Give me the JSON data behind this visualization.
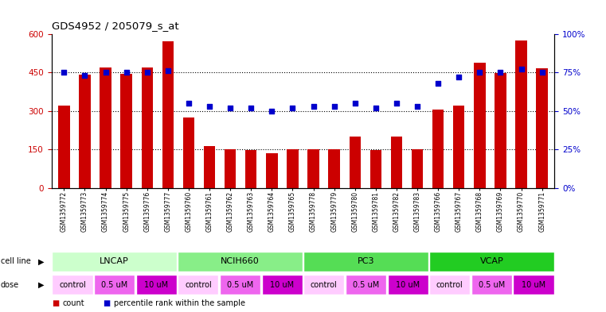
{
  "title": "GDS4952 / 205079_s_at",
  "samples": [
    "GSM1359772",
    "GSM1359773",
    "GSM1359774",
    "GSM1359775",
    "GSM1359776",
    "GSM1359777",
    "GSM1359760",
    "GSM1359761",
    "GSM1359762",
    "GSM1359763",
    "GSM1359764",
    "GSM1359765",
    "GSM1359778",
    "GSM1359779",
    "GSM1359780",
    "GSM1359781",
    "GSM1359782",
    "GSM1359783",
    "GSM1359766",
    "GSM1359767",
    "GSM1359768",
    "GSM1359769",
    "GSM1359770",
    "GSM1359771"
  ],
  "bar_values": [
    320,
    440,
    470,
    445,
    470,
    570,
    275,
    163,
    150,
    147,
    135,
    150,
    152,
    152,
    200,
    147,
    200,
    152,
    305,
    320,
    487,
    448,
    575,
    465
  ],
  "dot_values": [
    75,
    73,
    75,
    75,
    75,
    76,
    55,
    53,
    52,
    52,
    50,
    52,
    53,
    53,
    55,
    52,
    55,
    53,
    68,
    72,
    75,
    75,
    77,
    75
  ],
  "bar_color": "#cc0000",
  "dot_color": "#0000cc",
  "ylim_left": [
    0,
    600
  ],
  "ylim_right": [
    0,
    100
  ],
  "yticks_left": [
    0,
    150,
    300,
    450,
    600
  ],
  "ytick_labels_left": [
    "0",
    "150",
    "300",
    "450",
    "600"
  ],
  "yticks_right": [
    0,
    25,
    50,
    75,
    100
  ],
  "ytick_labels_right": [
    "0%",
    "25%",
    "50%",
    "75%",
    "100%"
  ],
  "hgrid_values": [
    150,
    300,
    450
  ],
  "cell_lines": [
    {
      "label": "LNCAP",
      "start": 0,
      "end": 6,
      "color": "#ccffcc"
    },
    {
      "label": "NCIH660",
      "start": 6,
      "end": 12,
      "color": "#88ee88"
    },
    {
      "label": "PC3",
      "start": 12,
      "end": 18,
      "color": "#55dd55"
    },
    {
      "label": "VCAP",
      "start": 18,
      "end": 24,
      "color": "#22cc22"
    }
  ],
  "dose_groups": [
    {
      "label": "control",
      "color": "#ffccff"
    },
    {
      "label": "0.5 uM",
      "color": "#ee66ee"
    },
    {
      "label": "10 uM",
      "color": "#cc00cc"
    }
  ],
  "legend_count_color": "#cc0000",
  "legend_pct_color": "#0000cc"
}
